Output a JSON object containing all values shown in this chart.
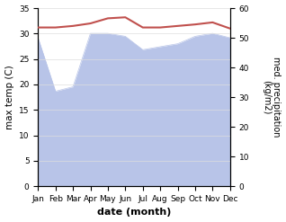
{
  "months": [
    "Jan",
    "Feb",
    "Mar",
    "Apr",
    "May",
    "Jun",
    "Jul",
    "Aug",
    "Sep",
    "Oct",
    "Nov",
    "Dec"
  ],
  "temp_max": [
    31.2,
    31.2,
    31.5,
    32.0,
    33.0,
    33.2,
    31.2,
    31.2,
    31.5,
    31.8,
    32.2,
    31.0
  ],
  "precip": [
    50.0,
    32.0,
    33.5,
    51.5,
    51.5,
    50.5,
    46.0,
    47.0,
    48.0,
    50.5,
    51.5,
    50.0
  ],
  "temp_color": "#c0504d",
  "precip_fill_color": "#b8c4e8",
  "temp_ylim": [
    0,
    35
  ],
  "precip_ylim": [
    0,
    60
  ],
  "temp_yticks": [
    0,
    5,
    10,
    15,
    20,
    25,
    30,
    35
  ],
  "precip_yticks": [
    0,
    10,
    20,
    30,
    40,
    50,
    60
  ],
  "xlabel": "date (month)",
  "ylabel_left": "max temp (C)",
  "ylabel_right": "med. precipitation\n(kg/m2)",
  "bg_color": "#ffffff",
  "grid_color": "#dddddd"
}
